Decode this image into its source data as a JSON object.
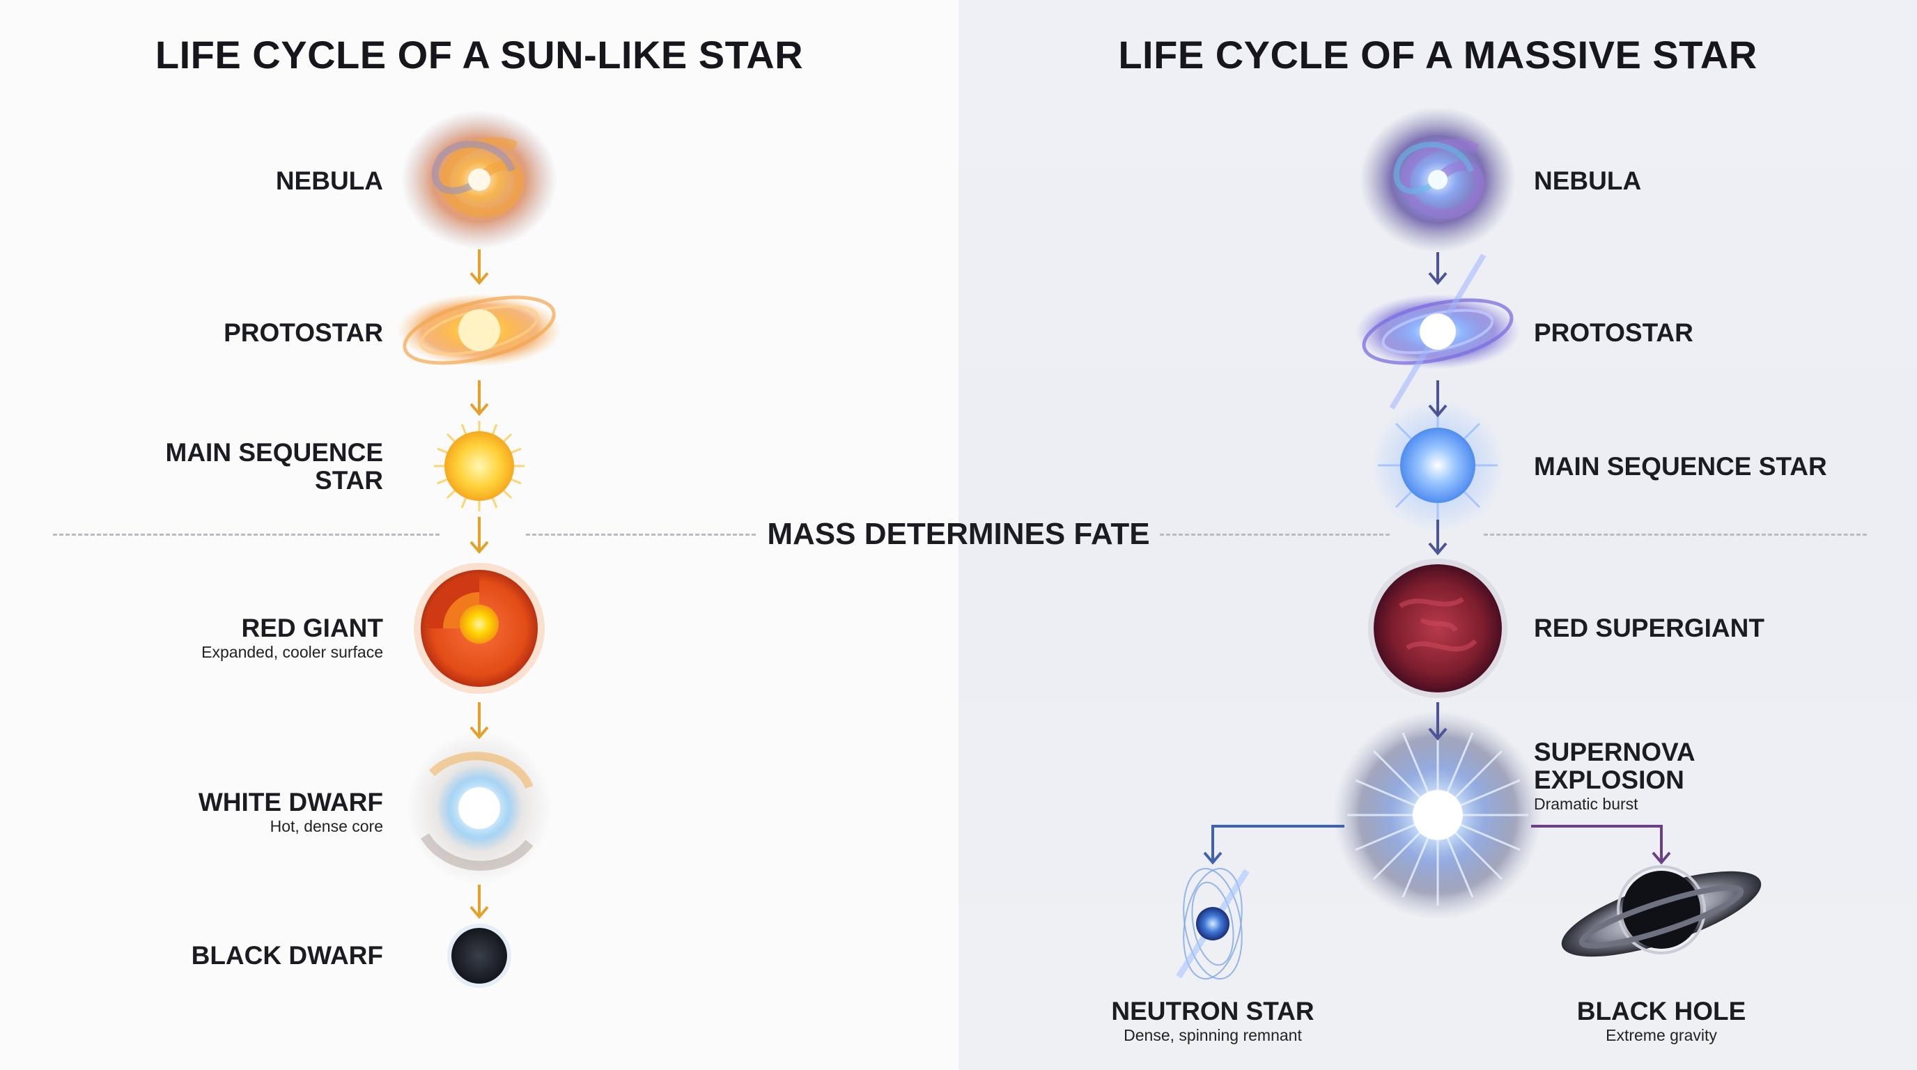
{
  "left": {
    "title": "LIFE CYCLE OF A SUN-LIKE STAR",
    "stages": [
      {
        "name": "NEBULA",
        "desc": ""
      },
      {
        "name": "PROTOSTAR",
        "desc": ""
      },
      {
        "name": "MAIN SEQUENCE\nSTAR",
        "desc": ""
      },
      {
        "name": "RED GIANT",
        "desc": "Expanded, cooler surface"
      },
      {
        "name": "WHITE DWARF",
        "desc": "Hot, dense core"
      },
      {
        "name": "BLACK DWARF",
        "desc": ""
      }
    ],
    "arrow_color": "#e4a12a"
  },
  "right": {
    "title": "LIFE CYCLE OF A MASSIVE STAR",
    "stages": [
      {
        "name": "NEBULA",
        "desc": ""
      },
      {
        "name": "PROTOSTAR",
        "desc": ""
      },
      {
        "name": "MAIN SEQUENCE STAR",
        "desc": ""
      },
      {
        "name": "RED SUPERGIANT",
        "desc": ""
      },
      {
        "name": "SUPERNOVA\nEXPLOSION",
        "desc": "Dramatic burst"
      }
    ],
    "outcomes": [
      {
        "name": "NEUTRON STAR",
        "desc": "Dense, spinning remnant"
      },
      {
        "name": "BLACK HOLE",
        "desc": "Extreme gravity"
      }
    ],
    "arrow_color": "#4d5496"
  },
  "divider_label": "MASS DETERMINES FATE"
}
